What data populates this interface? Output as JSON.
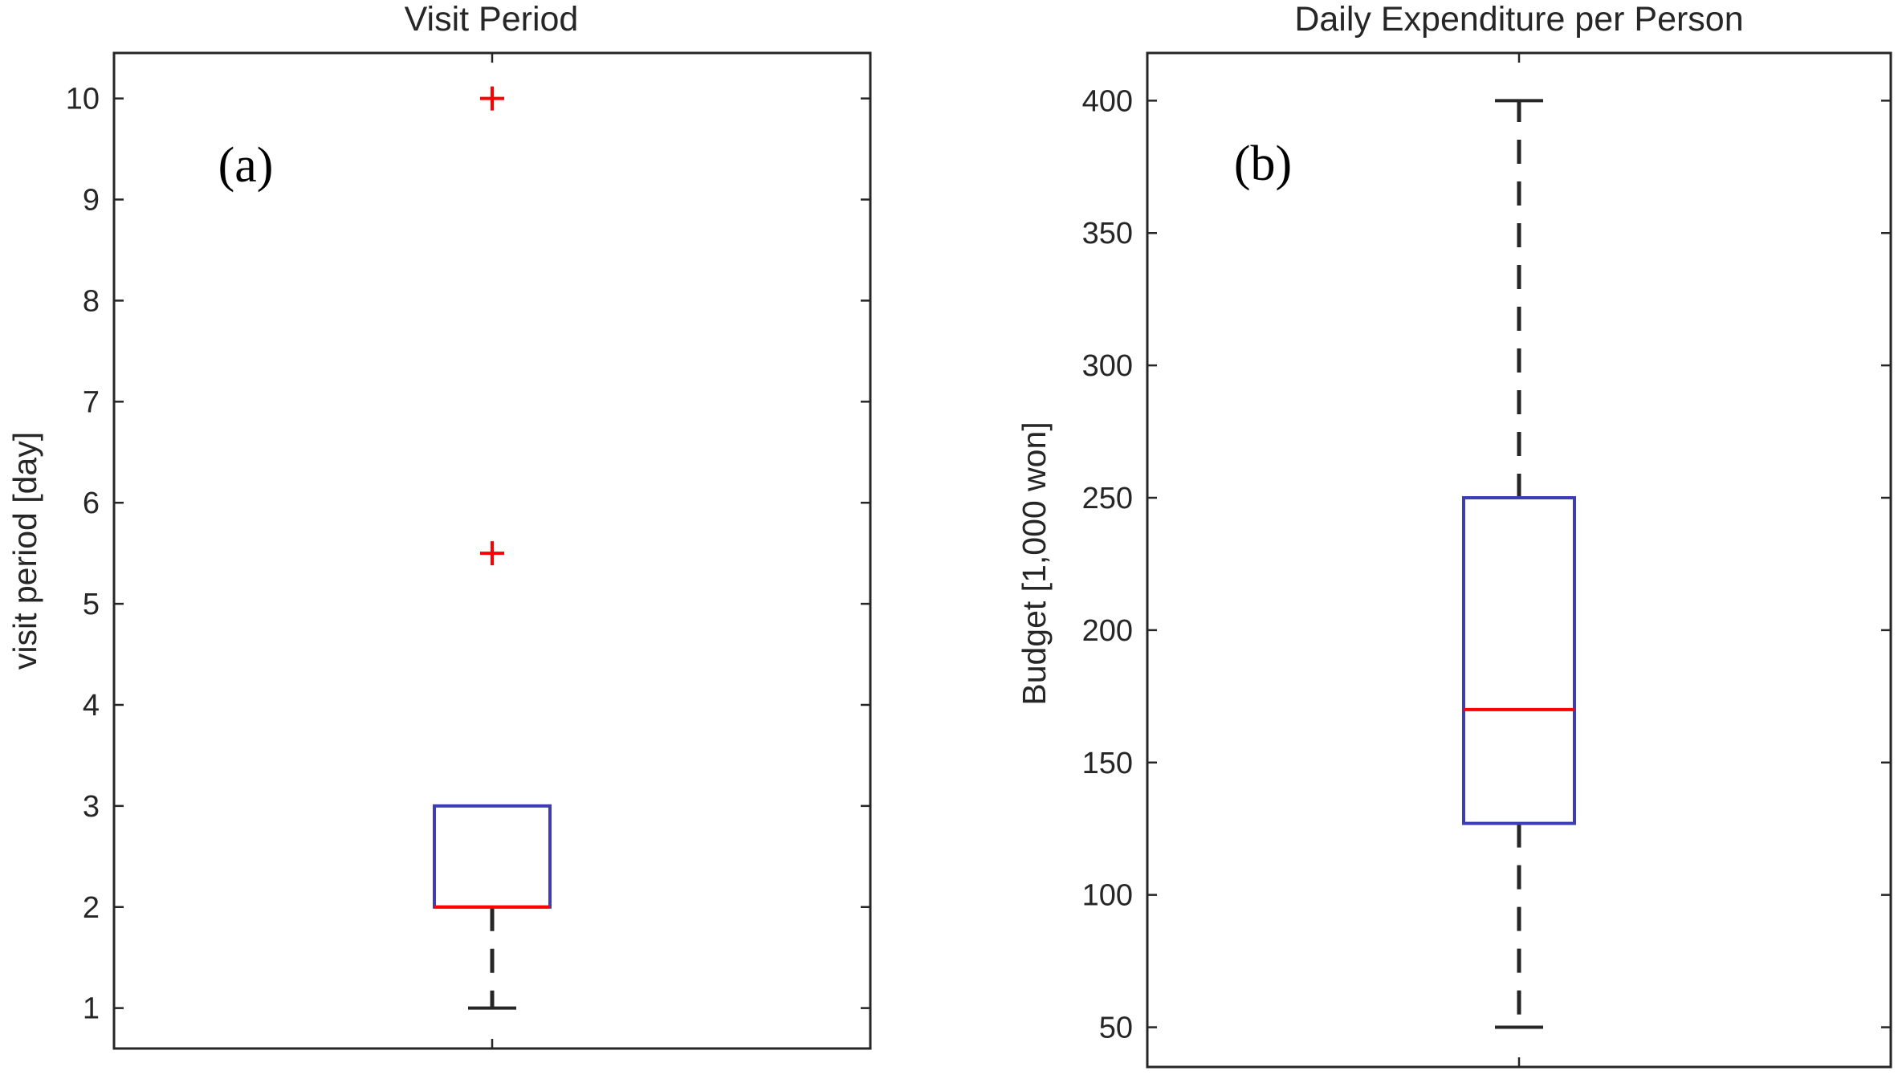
{
  "chart_data": [
    {
      "type": "box",
      "panel_tag": "(a)",
      "title": "Visit Period",
      "xlabel": "",
      "ylabel": "visit period [day]",
      "ylim": [
        0.6,
        10.45
      ],
      "yticks": [
        1,
        2,
        3,
        4,
        5,
        6,
        7,
        8,
        9,
        10
      ],
      "ytick_labels": [
        "1",
        "2",
        "3",
        "4",
        "5",
        "6",
        "7",
        "8",
        "9",
        "10"
      ],
      "grid": false,
      "box": {
        "whisker_low": 1,
        "q1": 2,
        "median": 2,
        "q3": 3,
        "whisker_high": 3
      },
      "outliers": [
        5.5,
        10
      ]
    },
    {
      "type": "box",
      "panel_tag": "(b)",
      "title": "Daily Expenditure per Person",
      "xlabel": "",
      "ylabel": "Budget [1,000 won]",
      "ylim": [
        35,
        418
      ],
      "yticks": [
        50,
        100,
        150,
        200,
        250,
        300,
        350,
        400
      ],
      "ytick_labels": [
        "50",
        "100",
        "150",
        "200",
        "250",
        "300",
        "350",
        "400"
      ],
      "grid": false,
      "box": {
        "whisker_low": 50,
        "q1": 127,
        "median": 170,
        "q3": 250,
        "whisker_high": 400
      },
      "outliers": []
    }
  ],
  "colors": {
    "box": "#3d3db8",
    "median": "#ff0000",
    "outlier": "#ff0000",
    "whisker": "#262626",
    "axes": "#262626"
  }
}
